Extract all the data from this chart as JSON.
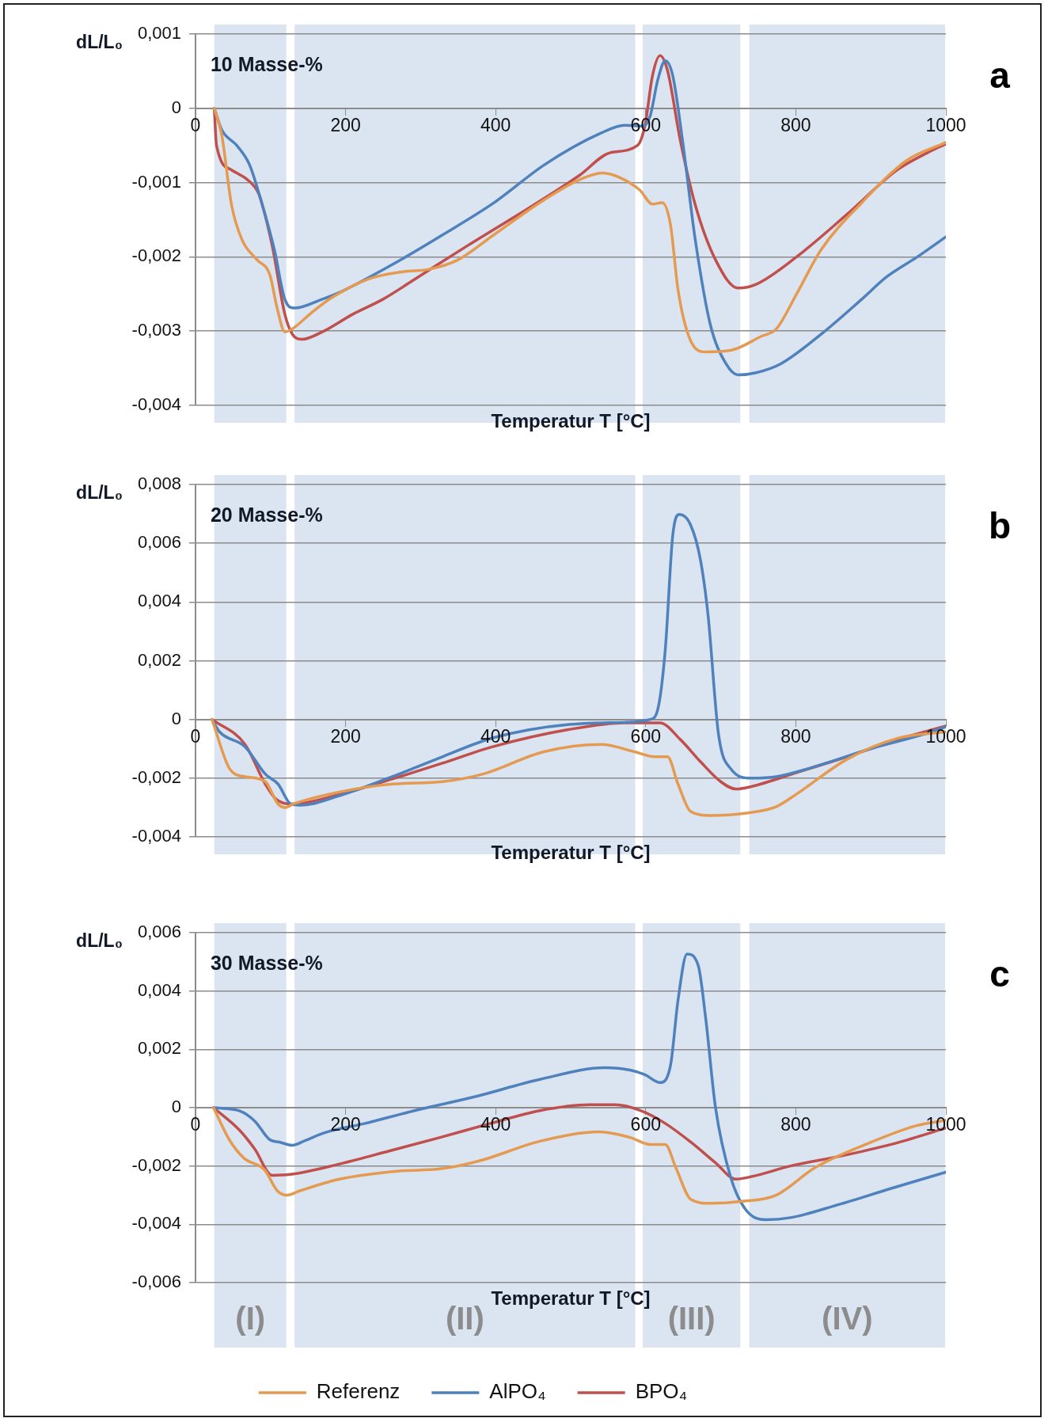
{
  "chart_data": [
    {
      "type": "line",
      "title": "10 Masse-%",
      "xlabel": "Temperatur T [°C]",
      "ylabel": "dL/L₀",
      "annotations": [
        "a"
      ],
      "marker": "none",
      "grid": "y",
      "legend": false,
      "xlim": [
        0,
        1000
      ],
      "xticks": [
        0,
        200,
        400,
        600,
        800,
        1000
      ],
      "ylim": [
        -0.004,
        0.001
      ],
      "yticks": [
        {
          "value": -0.004,
          "label": "-0,004"
        },
        {
          "value": -0.003,
          "label": "-0,003"
        },
        {
          "value": -0.002,
          "label": "-0,002"
        },
        {
          "value": -0.001,
          "label": "-0,001"
        },
        {
          "value": 0,
          "label": "0"
        },
        {
          "value": 0.001,
          "label": "0,001"
        }
      ],
      "bands": [
        {
          "axis": "x",
          "from": 25,
          "to": 121,
          "color": "#dbe5f1"
        },
        {
          "axis": "x",
          "from": 132,
          "to": 586,
          "color": "#dbe5f1"
        },
        {
          "axis": "x",
          "from": 596,
          "to": 726,
          "color": "#dbe5f1"
        },
        {
          "axis": "x",
          "from": 738,
          "to": 999,
          "color": "#dbe5f1"
        }
      ],
      "series": [
        {
          "color": "#e59a52",
          "x": [
            25,
            35,
            48,
            62,
            82,
            99,
            109,
            119,
            129,
            156,
            183,
            230,
            277,
            310,
            350,
            398,
            465,
            512,
            542,
            565,
            592,
            609,
            622,
            633,
            643,
            659,
            680,
            713,
            754,
            774,
            801,
            834,
            888,
            948,
            1000
          ],
          "values": [
            0,
            -0.00036,
            -0.0013,
            -0.00177,
            -0.00204,
            -0.00224,
            -0.0027,
            -0.00301,
            -0.00297,
            -0.00274,
            -0.00254,
            -0.0023,
            -0.0022,
            -0.00217,
            -0.00204,
            -0.0017,
            -0.00123,
            -0.00096,
            -0.00087,
            -0.00093,
            -0.0011,
            -0.00129,
            -0.00127,
            -0.00157,
            -0.00244,
            -0.00311,
            -0.00328,
            -0.00326,
            -0.00307,
            -0.00297,
            -0.0025,
            -0.0019,
            -0.00127,
            -0.0007,
            -0.00046
          ]
        },
        {
          "color": "#4f81bd",
          "x": [
            25,
            35,
            55,
            72,
            89,
            105,
            119,
            132,
            169,
            196,
            263,
            330,
            398,
            465,
            539,
            572,
            596,
            606,
            616,
            626,
            636,
            649,
            666,
            686,
            707,
            723,
            747,
            780,
            834,
            888,
            921,
            962,
            1000
          ],
          "values": [
            0,
            -0.00029,
            -0.0005,
            -0.00076,
            -0.0013,
            -0.0019,
            -0.00257,
            -0.00269,
            -0.00257,
            -0.00246,
            -0.0021,
            -0.0017,
            -0.00127,
            -0.00076,
            -0.00034,
            -0.00023,
            -0.00024,
            -0.0001,
            0.00038,
            0.00064,
            0.00044,
            -0.00043,
            -0.00177,
            -0.00291,
            -0.00344,
            -0.00359,
            -0.00356,
            -0.00344,
            -0.00304,
            -0.00257,
            -0.00227,
            -0.002,
            -0.00173
          ]
        },
        {
          "color": "#c0504d",
          "x": [
            25,
            28,
            48,
            79,
            85,
            102,
            119,
            129,
            142,
            169,
            210,
            250,
            297,
            364,
            451,
            512,
            552,
            589,
            599,
            609,
            619,
            629,
            646,
            666,
            693,
            723,
            747,
            801,
            868,
            935,
            975,
            1000
          ],
          "values": [
            0,
            -0.0005,
            -0.00083,
            -0.00106,
            -0.00117,
            -0.00184,
            -0.00277,
            -0.00304,
            -0.00311,
            -0.00301,
            -0.00277,
            -0.00257,
            -0.00227,
            -0.00184,
            -0.0013,
            -0.0009,
            -0.0006,
            -0.0005,
            -0.00023,
            0.00044,
            0.00071,
            0.00051,
            -0.00043,
            -0.0013,
            -0.00204,
            -0.00242,
            -0.00237,
            -0.002,
            -0.00143,
            -0.00083,
            -0.0006,
            -0.00048
          ]
        }
      ]
    },
    {
      "type": "line",
      "title": "20 Masse-%",
      "xlabel": "Temperatur T [°C]",
      "ylabel": "dL/L₀",
      "annotations": [
        "b"
      ],
      "marker": "none",
      "grid": "y",
      "legend": false,
      "xlim": [
        0,
        1000
      ],
      "xticks": [
        0,
        200,
        400,
        600,
        800,
        1000
      ],
      "ylim": [
        -0.004,
        0.008
      ],
      "yticks": [
        {
          "value": -0.004,
          "label": "-0,004"
        },
        {
          "value": -0.002,
          "label": "-0,002"
        },
        {
          "value": 0,
          "label": "0"
        },
        {
          "value": 0.002,
          "label": "0,002"
        },
        {
          "value": 0.004,
          "label": "0,004"
        },
        {
          "value": 0.006,
          "label": "0,006"
        },
        {
          "value": 0.008,
          "label": "0,008"
        }
      ],
      "bands": [
        {
          "axis": "x",
          "from": 25,
          "to": 121,
          "color": "#dbe5f1"
        },
        {
          "axis": "x",
          "from": 132,
          "to": 586,
          "color": "#dbe5f1"
        },
        {
          "axis": "x",
          "from": 596,
          "to": 726,
          "color": "#dbe5f1"
        },
        {
          "axis": "x",
          "from": 738,
          "to": 999,
          "color": "#dbe5f1"
        }
      ],
      "series": [
        {
          "color": "#e59a52",
          "x": [
            22,
            46,
            66,
            93,
            110,
            120,
            130,
            194,
            262,
            329,
            383,
            464,
            541,
            585,
            612,
            629,
            643,
            660,
            686,
            734,
            774,
            801,
            868,
            936,
            1000
          ],
          "values": [
            0,
            -0.0017,
            -0.00195,
            -0.00212,
            -0.00288,
            -0.003,
            -0.00288,
            -0.00246,
            -0.0022,
            -0.00212,
            -0.00186,
            -0.0011,
            -0.00085,
            -0.0011,
            -0.00127,
            -0.00127,
            -0.0022,
            -0.00314,
            -0.00327,
            -0.00319,
            -0.00297,
            -0.00254,
            -0.00136,
            -0.00064,
            -0.00042
          ]
        },
        {
          "color": "#4f81bd",
          "x": [
            22,
            32,
            66,
            93,
            110,
            127,
            140,
            194,
            262,
            329,
            396,
            498,
            572,
            606,
            616,
            626,
            636,
            645,
            660,
            673,
            683,
            697,
            714,
            740,
            774,
            835,
            902,
            970,
            1000
          ],
          "values": [
            0,
            -0.00042,
            -0.00093,
            -0.00186,
            -0.0022,
            -0.00288,
            -0.00292,
            -0.00258,
            -0.00195,
            -0.00127,
            -0.00063,
            -0.00017,
            -0.0001,
            0,
            0.00034,
            0.00237,
            0.00627,
            0.00698,
            0.00661,
            0.00542,
            0.00356,
            -0.00051,
            -0.0017,
            -0.002,
            -0.00195,
            -0.00153,
            -0.00098,
            -0.00051,
            -0.00025
          ]
        },
        {
          "color": "#c0504d",
          "x": [
            22,
            66,
            93,
            107,
            127,
            194,
            262,
            329,
            396,
            498,
            572,
            619,
            646,
            673,
            700,
            720,
            740,
            801,
            868,
            936,
            1000
          ],
          "values": [
            0,
            -0.00085,
            -0.0022,
            -0.00271,
            -0.00288,
            -0.00254,
            -0.00203,
            -0.00149,
            -0.00093,
            -0.00034,
            -0.00012,
            -0.00012,
            -0.00068,
            -0.00144,
            -0.00212,
            -0.00237,
            -0.00229,
            -0.00181,
            -0.00127,
            -0.00068,
            -0.00022
          ]
        }
      ]
    },
    {
      "type": "line",
      "title": "30 Masse-%",
      "xlabel": "Temperatur T [°C]",
      "ylabel": "dL/L₀",
      "annotations": [
        "c"
      ],
      "marker": "none",
      "grid": "y",
      "legend": "bottom",
      "xlim": [
        0,
        1000
      ],
      "xticks": [
        0,
        200,
        400,
        600,
        800,
        1000
      ],
      "ylim": [
        -0.006,
        0.006
      ],
      "yticks": [
        {
          "value": -0.006,
          "label": "-0,006"
        },
        {
          "value": -0.004,
          "label": "-0,004"
        },
        {
          "value": -0.002,
          "label": "-0,002"
        },
        {
          "value": 0,
          "label": "0"
        },
        {
          "value": 0.002,
          "label": "0,002"
        },
        {
          "value": 0.004,
          "label": "0,004"
        },
        {
          "value": 0.006,
          "label": "0,006"
        }
      ],
      "bands": [
        {
          "axis": "x",
          "from": 25,
          "to": 121,
          "label": "(I)",
          "color": "#dbe5f1"
        },
        {
          "axis": "x",
          "from": 132,
          "to": 586,
          "label": "(II)",
          "color": "#dbe5f1"
        },
        {
          "axis": "x",
          "from": 596,
          "to": 726,
          "label": "(III)",
          "color": "#dbe5f1"
        },
        {
          "axis": "x",
          "from": 738,
          "to": 999,
          "label": "(IV)",
          "color": "#dbe5f1"
        }
      ],
      "series": [
        {
          "name": "Referenz",
          "color": "#e59a52",
          "x": [
            24,
            45,
            65,
            92,
            109,
            122,
            139,
            192,
            272,
            326,
            379,
            459,
            539,
            579,
            606,
            626,
            640,
            660,
            686,
            726,
            773,
            826,
            893,
            960,
            1000
          ],
          "values": [
            0,
            -0.0011,
            -0.00174,
            -0.00213,
            -0.00285,
            -0.003,
            -0.00285,
            -0.00245,
            -0.00217,
            -0.0021,
            -0.00182,
            -0.00115,
            -0.00083,
            -0.00102,
            -0.00126,
            -0.00126,
            -0.00205,
            -0.00314,
            -0.00328,
            -0.00322,
            -0.00301,
            -0.00205,
            -0.00126,
            -0.00062,
            -0.00043
          ]
        },
        {
          "name": "AlPO₄",
          "color": "#4f81bd",
          "x": [
            24,
            59,
            79,
            99,
            112,
            129,
            146,
            172,
            226,
            292,
            373,
            459,
            546,
            579,
            599,
            619,
            633,
            643,
            655,
            670,
            680,
            693,
            713,
            733,
            760,
            793,
            856,
            927,
            1000
          ],
          "values": [
            0,
            -0.00011,
            -0.00046,
            -0.0011,
            -0.00118,
            -0.00129,
            -0.00113,
            -0.00086,
            -0.00054,
            -0.0001,
            0.00038,
            0.00097,
            0.00137,
            0.00129,
            0.00113,
            0.00086,
            0.00145,
            0.00368,
            0.00527,
            0.00487,
            0.00304,
            0,
            -0.00237,
            -0.00349,
            -0.00384,
            -0.00377,
            -0.00333,
            -0.00277,
            -0.00221
          ]
        },
        {
          "name": "BPO₄",
          "color": "#c0504d",
          "x": [
            24,
            59,
            79,
            102,
            126,
            192,
            259,
            326,
            393,
            459,
            526,
            559,
            593,
            626,
            660,
            693,
            720,
            740,
            793,
            860,
            927,
            1000
          ],
          "values": [
            0,
            -0.00078,
            -0.00142,
            -0.00232,
            -0.00229,
            -0.00193,
            -0.00148,
            -0.00102,
            -0.00054,
            -0.0001,
            0.0001,
            0.0001,
            -0.0001,
            -0.00054,
            -0.00118,
            -0.00189,
            -0.00245,
            -0.00237,
            -0.002,
            -0.00166,
            -0.00126,
            -0.0007
          ]
        }
      ]
    }
  ]
}
